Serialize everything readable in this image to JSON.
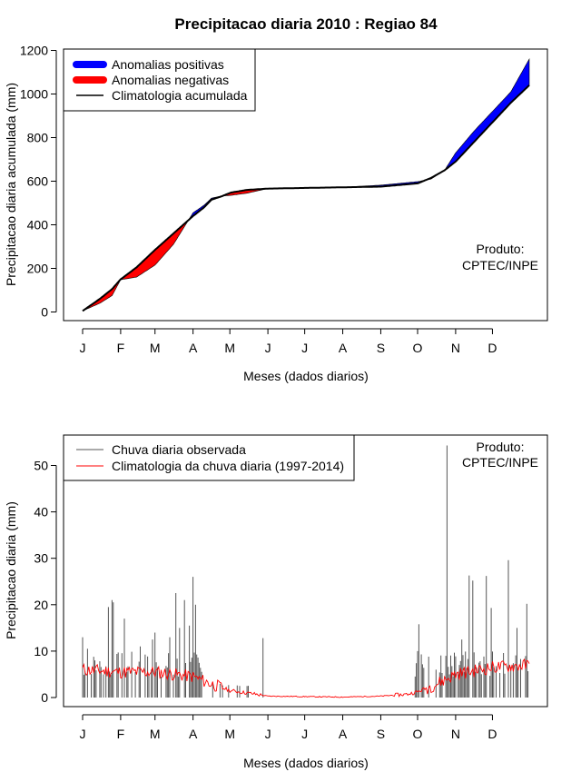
{
  "title": "Precipitacao diaria 2010 : Regiao 84",
  "colors": {
    "positive": "#0000ff",
    "negative": "#ff0000",
    "line": "#000000",
    "bars": "#555555",
    "clim": "#ff0000"
  },
  "months": [
    "J",
    "F",
    "M",
    "A",
    "M",
    "J",
    "J",
    "A",
    "S",
    "O",
    "N",
    "D"
  ],
  "chart_data": [
    {
      "type": "area",
      "title": "Precipitacao diaria 2010 : Regiao 84",
      "xlabel": "Meses (dados diarios)",
      "ylabel": "Precipitacao diaria acumulada (mm)",
      "ylim": [
        0,
        1200
      ],
      "yticks": [
        0,
        200,
        400,
        600,
        800,
        1000,
        1200
      ],
      "legend": [
        "Anomalias positivas",
        "Anomalias negativas",
        "Climatologia acumulada"
      ],
      "legend_position": "top-left",
      "annotation": [
        "Produto:",
        "CPTEC/INPE"
      ],
      "x_day": [
        1,
        15,
        25,
        32,
        45,
        60,
        75,
        91,
        100,
        106,
        114,
        122,
        135,
        152,
        182,
        213,
        244,
        274,
        285,
        296,
        305,
        320,
        335,
        350,
        365
      ],
      "climatology": [
        5,
        60,
        105,
        150,
        205,
        285,
        360,
        440,
        480,
        515,
        530,
        548,
        560,
        566,
        569,
        572,
        575,
        590,
        615,
        650,
        690,
        780,
        870,
        960,
        1040
      ],
      "observed": [
        5,
        40,
        75,
        148,
        160,
        215,
        310,
        455,
        490,
        522,
        532,
        535,
        545,
        566,
        569,
        572,
        582,
        598,
        610,
        650,
        730,
        830,
        920,
        1010,
        1160
      ]
    },
    {
      "type": "bar",
      "xlabel": "Meses (dados diarios)",
      "ylabel": "Precipitacao diaria (mm)",
      "ylim": [
        0,
        55
      ],
      "yticks": [
        0,
        10,
        20,
        30,
        40,
        50
      ],
      "legend": [
        "Chuva diaria observada",
        "Climatologia da chuva diaria (1997-2014)"
      ],
      "legend_position": "top-left",
      "annotation": [
        "Produto:",
        "CPTEC/INPE"
      ],
      "observed_peaks": [
        {
          "day": 1,
          "value": 13
        },
        {
          "day": 5,
          "value": 10.5
        },
        {
          "day": 11,
          "value": 8
        },
        {
          "day": 22,
          "value": 19.5
        },
        {
          "day": 25,
          "value": 21
        },
        {
          "day": 26,
          "value": 20.5
        },
        {
          "day": 35,
          "value": 17
        },
        {
          "day": 48,
          "value": 11
        },
        {
          "day": 58,
          "value": 12.5
        },
        {
          "day": 60,
          "value": 14
        },
        {
          "day": 72,
          "value": 13
        },
        {
          "day": 77,
          "value": 22.5
        },
        {
          "day": 80,
          "value": 15
        },
        {
          "day": 84,
          "value": 21
        },
        {
          "day": 88,
          "value": 15.5
        },
        {
          "day": 91,
          "value": 26
        },
        {
          "day": 93,
          "value": 20
        },
        {
          "day": 148,
          "value": 12.8
        },
        {
          "day": 274,
          "value": 10
        },
        {
          "day": 275,
          "value": 15.8
        },
        {
          "day": 298,
          "value": 54.3
        },
        {
          "day": 310,
          "value": 12.5
        },
        {
          "day": 316,
          "value": 26.3
        },
        {
          "day": 319,
          "value": 25.2
        },
        {
          "day": 330,
          "value": 26.2
        },
        {
          "day": 334,
          "value": 19.3
        },
        {
          "day": 348,
          "value": 29.6
        },
        {
          "day": 355,
          "value": 15
        },
        {
          "day": 363,
          "value": 20.2
        }
      ],
      "climatology_nodes": [
        {
          "day": 1,
          "value": 6
        },
        {
          "day": 30,
          "value": 5.5
        },
        {
          "day": 60,
          "value": 5.5
        },
        {
          "day": 91,
          "value": 4.5
        },
        {
          "day": 105,
          "value": 3
        },
        {
          "day": 121,
          "value": 1.5
        },
        {
          "day": 140,
          "value": 0.8
        },
        {
          "day": 152,
          "value": 0.3
        },
        {
          "day": 213,
          "value": 0.1
        },
        {
          "day": 244,
          "value": 0.3
        },
        {
          "day": 265,
          "value": 0.7
        },
        {
          "day": 274,
          "value": 1.2
        },
        {
          "day": 290,
          "value": 3
        },
        {
          "day": 305,
          "value": 5
        },
        {
          "day": 335,
          "value": 6.5
        },
        {
          "day": 365,
          "value": 7
        }
      ]
    }
  ]
}
